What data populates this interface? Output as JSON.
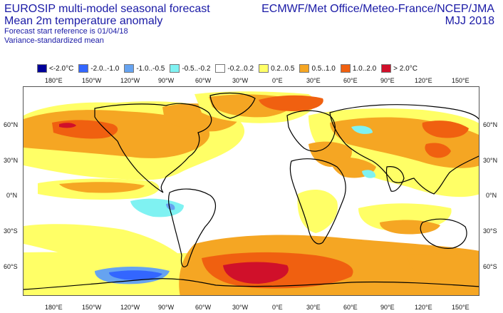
{
  "header": {
    "title_lines": [
      "EUROSIP multi-model seasonal forecast",
      "Mean 2m temperature anomaly"
    ],
    "subtitle_lines": [
      "Forecast start reference is 01/04/18",
      "Variance-standardized mean"
    ],
    "agencies": "ECMWF/Met Office/Meteo-France/NCEP/JMA",
    "period": "MJJ 2018"
  },
  "legend": [
    {
      "label": "<-2.0°C",
      "color": "#000099"
    },
    {
      "label": "-2.0..-1.0",
      "color": "#3366ff"
    },
    {
      "label": "-1.0..-0.5",
      "color": "#66a3f0"
    },
    {
      "label": "-0.5..-0.2",
      "color": "#7ff2f2"
    },
    {
      "label": "-0.2..0.2",
      "color": "#ffffff"
    },
    {
      "label": "0.2..0.5",
      "color": "#ffff66"
    },
    {
      "label": "0.5..1.0",
      "color": "#f5a623"
    },
    {
      "label": "1.0..2.0",
      "color": "#f06010"
    },
    {
      "label": "> 2.0°C",
      "color": "#d0102a"
    }
  ],
  "axes": {
    "lon_ticks_top": [
      "180°E",
      "150°W",
      "120°W",
      "90°W",
      "60°W",
      "30°W",
      "0°E",
      "30°E",
      "60°E",
      "90°E",
      "120°E",
      "150°E"
    ],
    "lon_ticks_bottom": [
      "180°E",
      "150°W",
      "120°W",
      "90°W",
      "60°W",
      "30°W",
      "0°E",
      "30°E",
      "60°E",
      "90°E",
      "120°E",
      "150°E"
    ],
    "lat_ticks_left": [
      "60°N",
      "30°N",
      "0°N",
      "30°S",
      "60°S"
    ],
    "lat_ticks_right": [
      "60°N",
      "30°N",
      "0°N",
      "30°S",
      "60°S"
    ]
  }
}
